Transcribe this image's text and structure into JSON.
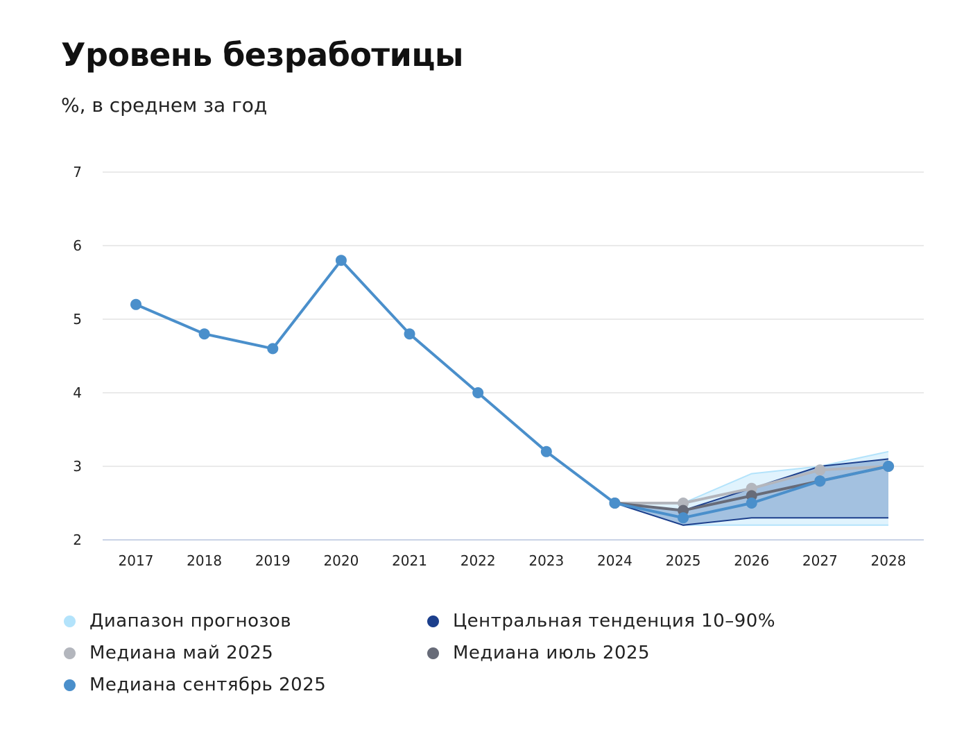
{
  "chart_data": {
    "type": "line",
    "title": "Уровень безработицы",
    "subtitle": "%, в среднем за год",
    "x": [
      "2017",
      "2018",
      "2019",
      "2020",
      "2021",
      "2022",
      "2023",
      "2024",
      "2025",
      "2026",
      "2027",
      "2028"
    ],
    "ylim": [
      2,
      7
    ],
    "yticks": [
      2,
      3,
      4,
      5,
      6,
      7
    ],
    "grid": true,
    "legend_position": "bottom",
    "bands": [
      {
        "name": "Диапазон прогнозов",
        "color": "#b3e3fb",
        "x": [
          "2024",
          "2025",
          "2026",
          "2027",
          "2028"
        ],
        "lower": [
          2.5,
          2.2,
          2.2,
          2.2,
          2.2
        ],
        "upper": [
          2.5,
          2.5,
          2.9,
          3.0,
          3.2
        ]
      },
      {
        "name": "Центральная тенденция 10–90%",
        "color": "#1c3f8c",
        "x": [
          "2024",
          "2025",
          "2026",
          "2027",
          "2028"
        ],
        "lower": [
          2.5,
          2.2,
          2.3,
          2.3,
          2.3
        ],
        "upper": [
          2.5,
          2.4,
          2.7,
          3.0,
          3.1
        ]
      }
    ],
    "series": [
      {
        "name": "Медиана май 2025",
        "color": "#b3b6bd",
        "x": [
          "2024",
          "2025",
          "2026",
          "2027",
          "2028"
        ],
        "values": [
          2.5,
          2.5,
          2.7,
          2.95,
          3.0
        ]
      },
      {
        "name": "Медиана июль 2025",
        "color": "#676b78",
        "x": [
          "2024",
          "2025",
          "2026",
          "2027",
          "2028"
        ],
        "values": [
          2.5,
          2.4,
          2.6,
          2.8,
          3.0
        ]
      },
      {
        "name": "Медиана сентябрь 2025",
        "color": "#4a8fcb",
        "x": [
          "2017",
          "2018",
          "2019",
          "2020",
          "2021",
          "2022",
          "2023",
          "2024",
          "2025",
          "2026",
          "2027",
          "2028"
        ],
        "values": [
          5.2,
          4.8,
          4.6,
          5.8,
          4.8,
          4.0,
          3.2,
          2.5,
          2.3,
          2.5,
          2.8,
          3.0
        ]
      }
    ]
  },
  "legend": [
    {
      "label": "Диапазон прогнозов",
      "color": "#b3e3fb"
    },
    {
      "label": "Центральная тенденция 10–90%",
      "color": "#1c3f8c"
    },
    {
      "label": "Медиана май 2025",
      "color": "#b3b6bd"
    },
    {
      "label": "Медиана июль 2025",
      "color": "#676b78"
    },
    {
      "label": "Медиана сентябрь 2025",
      "color": "#4a8fcb"
    }
  ]
}
